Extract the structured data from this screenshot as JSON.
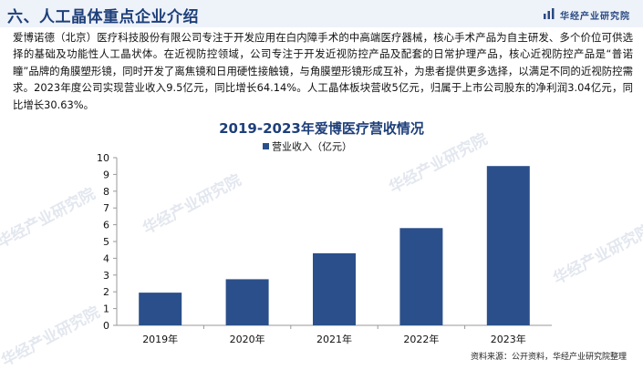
{
  "header": {
    "title": "六、人工晶体重点企业介绍",
    "brand": "华经产业研究院"
  },
  "paragraph": "爱博诺德（北京）医疗科技股份有限公司专注于开发应用在白内障手术的中高端医疗器械，核心手术产品为自主研发、多个价位可供选择的基础及功能性人工晶状体。在近视防控领域，公司专注于开发近视防控产品及配套的日常护理产品，核心近视防控产品是“普诺瞳”品牌的角膜塑形镜，同时开发了离焦镜和日用硬性接触镜，与角膜塑形镜形成互补，为患者提供更多选择，以满足不同的近视防控需求。2023年度公司实现营业收入9.5亿元，同比增长64.14%。人工晶体板块营收5亿元，归属于上市公司股东的净利润3.04亿元，同比增长30.63%。",
  "watermark": "华经产业研究院",
  "source": "资料来源：公开资料，华经产业研究院整理",
  "colors": {
    "bar": "#2b4f8a",
    "title": "#1e3f7a",
    "header_bg": "#eef2f9"
  },
  "chart_data": {
    "type": "bar",
    "title": "2019-2023年爱博医疗营收情况",
    "categories": [
      "2019年",
      "2020年",
      "2021年",
      "2022年",
      "2023年"
    ],
    "series": [
      {
        "name": "营业收入（亿元）",
        "values": [
          1.95,
          2.75,
          4.3,
          5.8,
          9.5
        ]
      }
    ],
    "ylim": [
      0,
      10
    ],
    "yticks": [
      0,
      1,
      2,
      3,
      4,
      5,
      6,
      7,
      8,
      9,
      10
    ],
    "legend": "top-left",
    "grid": false
  }
}
